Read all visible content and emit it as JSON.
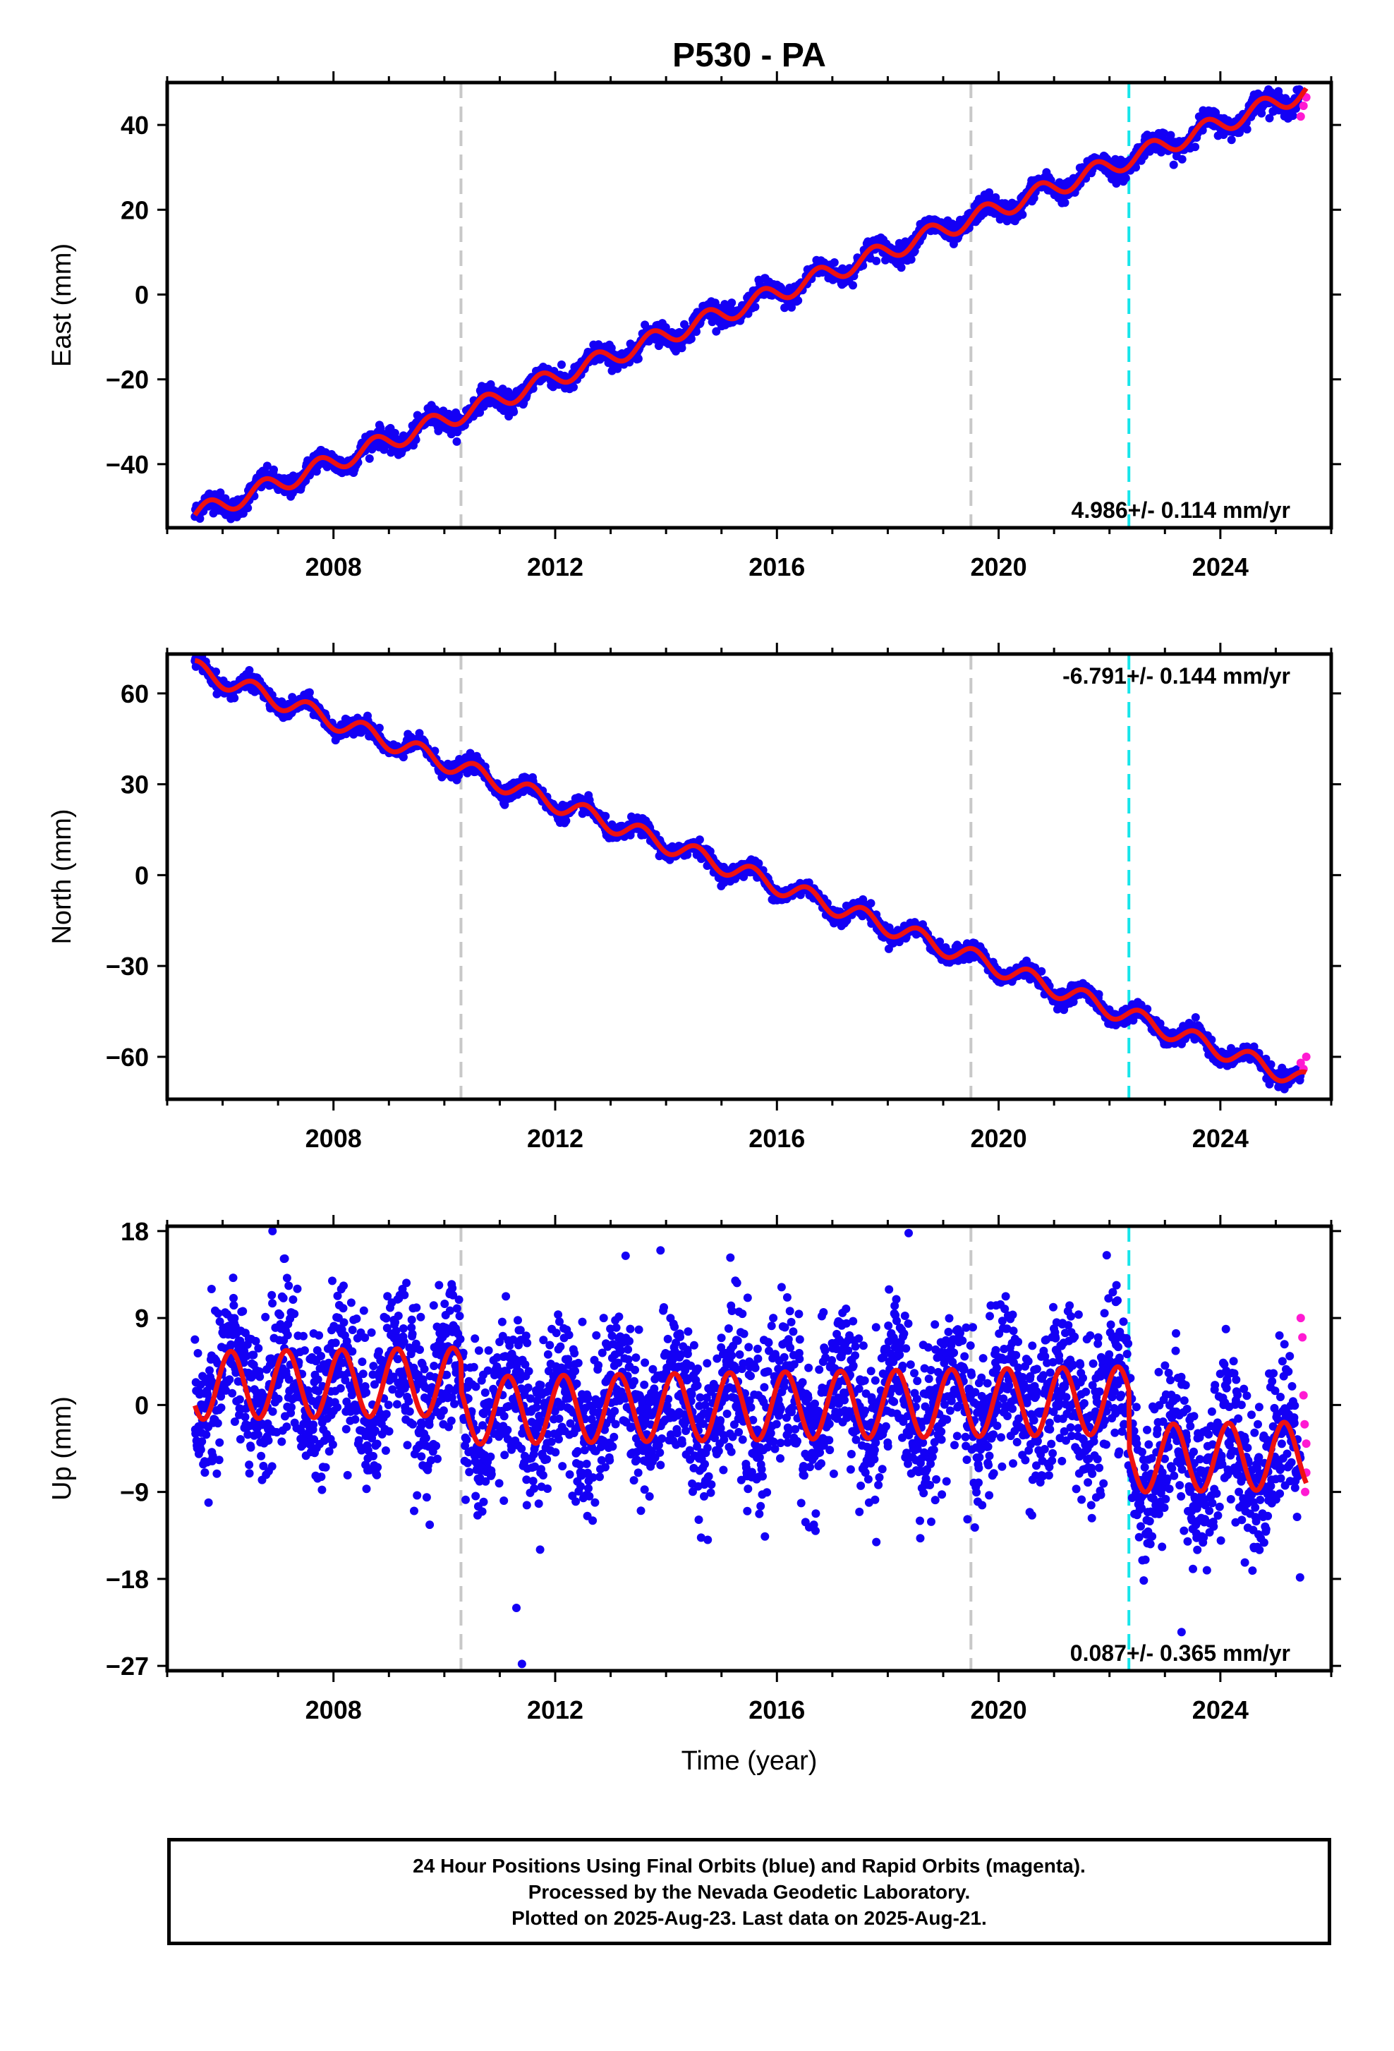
{
  "title": "P530 - PA",
  "xlabel": "Time (year)",
  "footer": {
    "line1": "24 Hour Positions Using Final Orbits (blue) and Rapid Orbits (magenta).",
    "line2": "Processed by the Nevada Geodetic Laboratory.",
    "line3": "Plotted on 2025-Aug-23. Last data on 2025-Aug-21."
  },
  "colors": {
    "final_points": "#1400f5",
    "rapid_points": "#ff1ad2",
    "model_line": "#ee1111",
    "gray_lines": "#c8c8c8",
    "cyan_line": "#16e6ea"
  },
  "chart_data": [
    {
      "type": "scatter",
      "name_hint": "east",
      "ylabel": "East (mm)",
      "rate_label": "4.986+/- 0.114 mm/yr",
      "rate_position": "bottom-right",
      "xlim": [
        2005.0,
        2026.0
      ],
      "ylim": [
        -55,
        50
      ],
      "yticks": [
        -40,
        -20,
        0,
        20,
        40
      ],
      "xticks": [
        2008,
        2012,
        2016,
        2020,
        2024
      ],
      "vlines_gray": [
        2010.3,
        2019.5
      ],
      "vlines_cyan": [
        2022.35
      ],
      "model": {
        "start": 2005.5,
        "end": 2025.55,
        "intercept": -52,
        "slope": 4.986,
        "annual_amp": 2.2,
        "annual_phase": 0.0
      },
      "noise": 1.2,
      "rapid": {
        "x": [
          2025.45,
          2025.5,
          2025.55
        ],
        "y": [
          42,
          44.5,
          46.5
        ]
      }
    },
    {
      "type": "scatter",
      "name_hint": "north",
      "ylabel": "North (mm)",
      "rate_label": "-6.791+/- 0.144 mm/yr",
      "rate_position": "top-right",
      "xlim": [
        2005.0,
        2026.0
      ],
      "ylim": [
        -74,
        73
      ],
      "yticks": [
        -60,
        -30,
        0,
        30,
        60
      ],
      "xticks": [
        2008,
        2012,
        2016,
        2020,
        2024
      ],
      "vlines_gray": [
        2010.3,
        2019.5
      ],
      "vlines_cyan": [
        2022.35
      ],
      "model": {
        "start": 2005.5,
        "end": 2025.55,
        "intercept": 68,
        "slope": -6.791,
        "annual_amp": 3.0,
        "annual_phase": 0.2
      },
      "noise": 1.3,
      "rapid": {
        "x": [
          2025.45,
          2025.5,
          2025.55
        ],
        "y": [
          -62,
          -64,
          -60
        ]
      }
    },
    {
      "type": "scatter",
      "name_hint": "up",
      "ylabel": "Up (mm)",
      "rate_label": "0.087+/- 0.365 mm/yr",
      "rate_position": "bottom-right",
      "xlim": [
        2005.0,
        2026.0
      ],
      "ylim": [
        -27.5,
        18.5
      ],
      "yticks": [
        -27,
        -18,
        -9,
        0,
        9,
        18
      ],
      "xticks": [
        2008,
        2012,
        2016,
        2020,
        2024
      ],
      "vlines_gray": [
        2010.3,
        2019.5
      ],
      "vlines_cyan": [
        2022.35
      ],
      "model": {
        "start": 2005.5,
        "end": 2025.55,
        "intercept": 2,
        "slope": 0.087,
        "annual_amp": 3.5,
        "annual_phase": 0.6
      },
      "offsets": [
        {
          "at": 2010.3,
          "delta": -3
        },
        {
          "at": 2022.35,
          "delta": -6
        }
      ],
      "noise": 4.0,
      "outliers": {
        "x": [
          2006.9,
          2011.4,
          2011.3,
          2013.9,
          2021.95,
          2023.3,
          2005.8
        ],
        "y": [
          18,
          -26.8,
          -21,
          16,
          15.5,
          -23.5,
          12
        ]
      },
      "rapid": {
        "x": [
          2025.45,
          2025.48,
          2025.5,
          2025.52,
          2025.55,
          2025.55,
          2025.53
        ],
        "y": [
          9,
          7,
          1,
          -2,
          -4,
          -7,
          -9
        ]
      }
    }
  ]
}
